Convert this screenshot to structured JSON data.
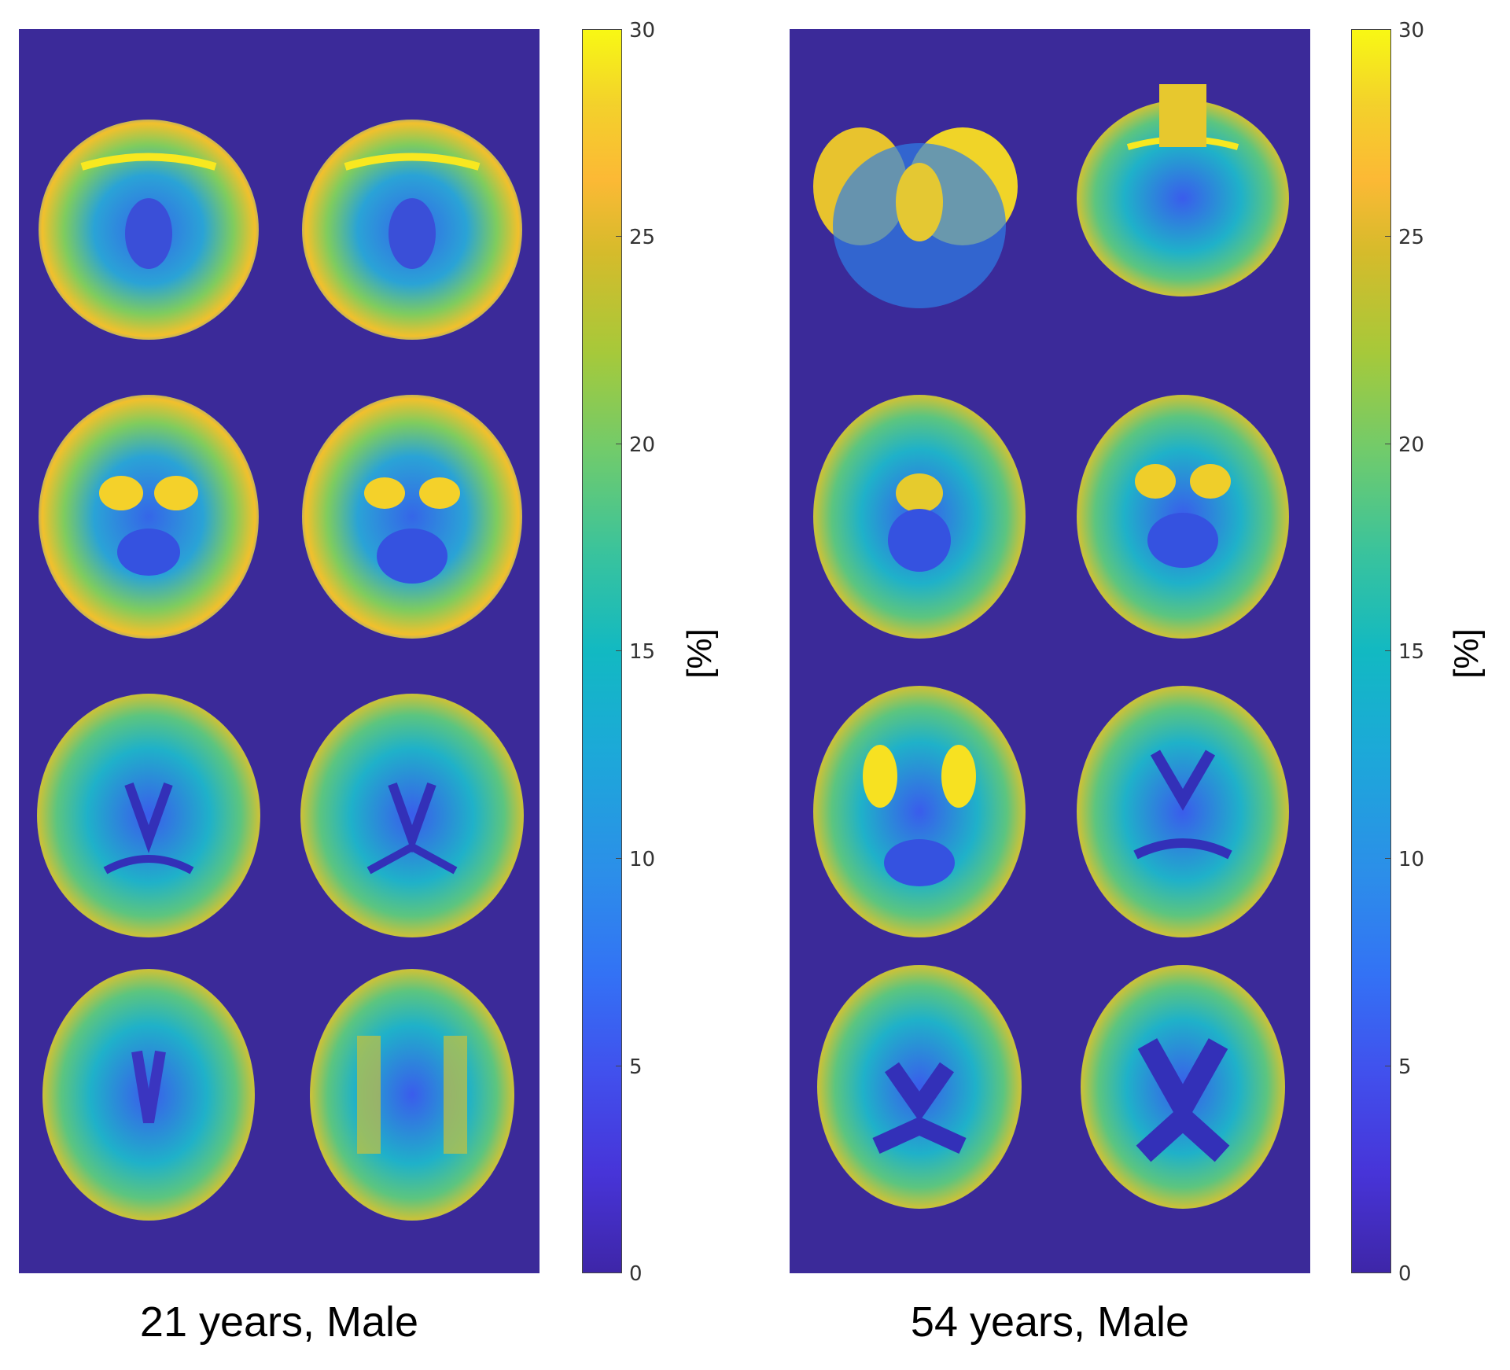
{
  "panels": [
    {
      "caption": "21 years, Male",
      "colorbar": {
        "ticks": [
          "30",
          "25",
          "20",
          "15",
          "10",
          "5",
          "0"
        ],
        "unit": "[%]",
        "range": [
          0,
          30
        ]
      }
    },
    {
      "caption": "54 years, Male",
      "colorbar": {
        "ticks": [
          "30",
          "25",
          "20",
          "15",
          "10",
          "5",
          "0"
        ],
        "unit": "[%]",
        "range": [
          0,
          30
        ]
      }
    }
  ],
  "colors": {
    "background": "#3b2a99",
    "low": "#3e26a8",
    "mid": "#12b9c2",
    "high": "#f8f814"
  }
}
